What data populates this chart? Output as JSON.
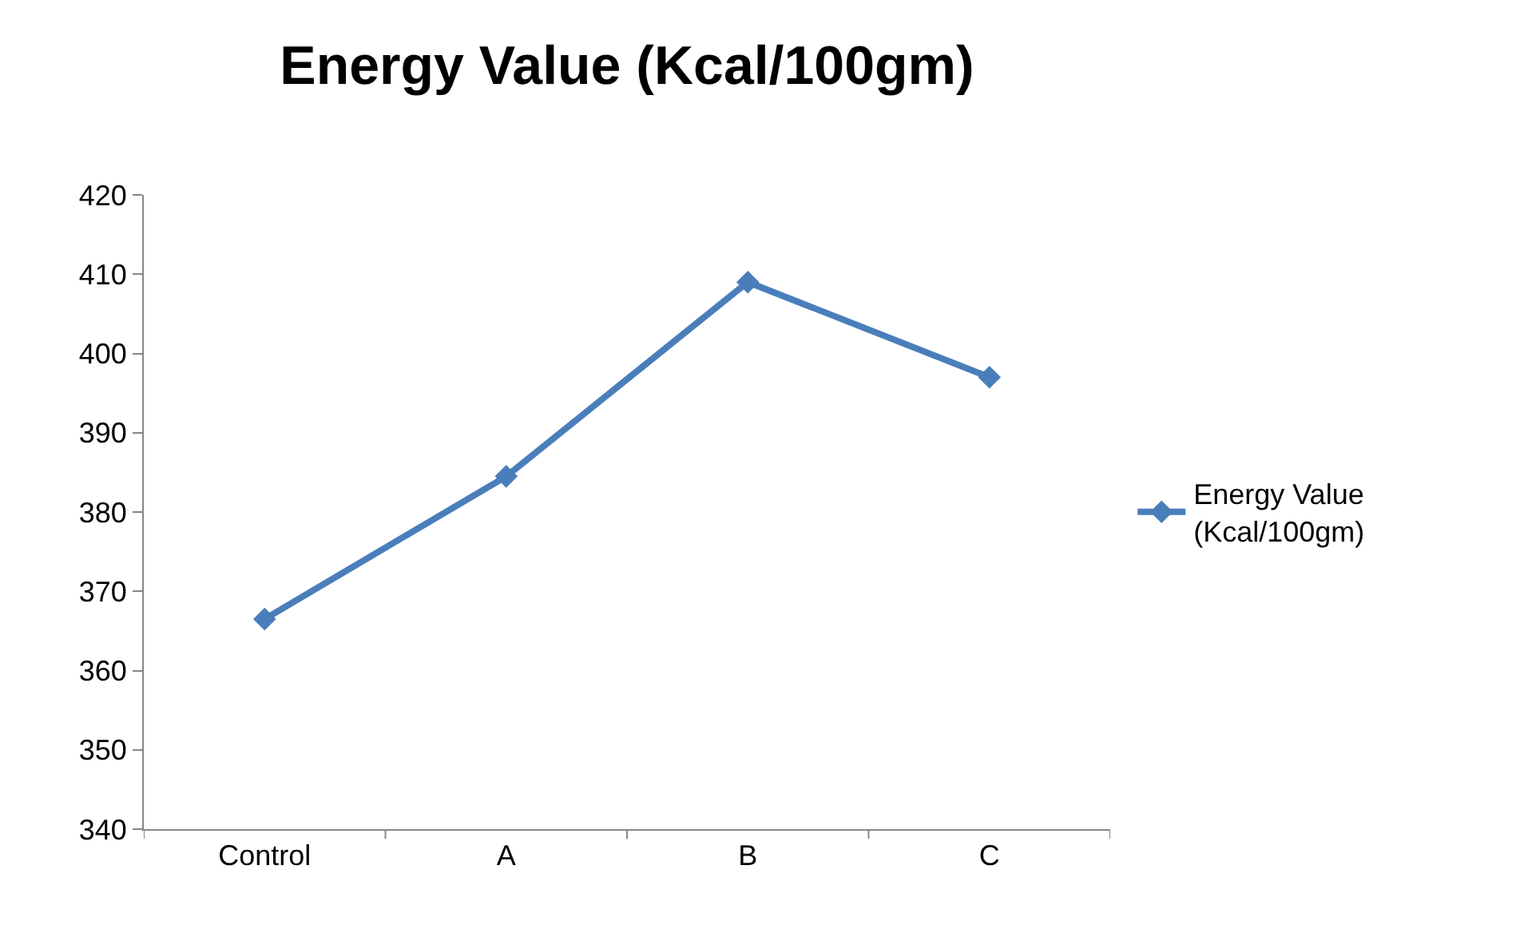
{
  "chart_data": {
    "type": "line",
    "title": "Energy Value (Kcal/100gm)",
    "categories": [
      "Control",
      "A",
      "B",
      "C"
    ],
    "series": [
      {
        "name": "Energy Value (Kcal/100gm)",
        "color": "#4a7ebb",
        "values": [
          366.5,
          384.5,
          409,
          397
        ]
      }
    ],
    "ylim": [
      340,
      420
    ],
    "yticks": [
      340,
      350,
      360,
      370,
      380,
      390,
      400,
      410,
      420
    ],
    "grid": false,
    "legend": "right",
    "marker": "diamond",
    "line_style": "solid"
  }
}
